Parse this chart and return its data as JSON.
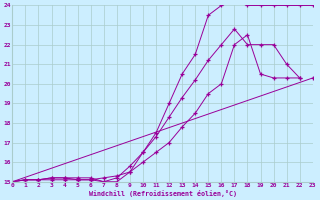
{
  "xlabel": "Windchill (Refroidissement éolien,°C)",
  "bg_color": "#cceeff",
  "grid_color": "#aacccc",
  "line_color": "#990099",
  "xmin": 0,
  "xmax": 23,
  "ymin": 15,
  "ymax": 24,
  "yticks": [
    15,
    16,
    17,
    18,
    19,
    20,
    21,
    22,
    23,
    24
  ],
  "xticks": [
    0,
    1,
    2,
    3,
    4,
    5,
    6,
    7,
    8,
    9,
    10,
    11,
    12,
    13,
    14,
    15,
    16,
    17,
    18,
    19,
    20,
    21,
    22,
    23
  ],
  "series": [
    {
      "x": [
        0,
        1,
        2,
        3,
        4,
        5,
        6,
        7,
        8,
        9,
        10,
        11,
        12,
        13,
        14,
        15,
        16,
        17,
        18,
        19,
        20,
        21,
        22,
        23
      ],
      "y": [
        15,
        15.1,
        15.1,
        15.1,
        15.1,
        15.1,
        15.1,
        15.2,
        15.3,
        15.5,
        16.5,
        17.5,
        19.0,
        20.5,
        21.5,
        23.5,
        24.0,
        24.2,
        24.0,
        24.0,
        24.0,
        24.0,
        24.0,
        24.0
      ]
    },
    {
      "x": [
        0,
        1,
        2,
        3,
        4,
        5,
        6,
        7,
        8,
        9,
        10,
        11,
        12,
        13,
        14,
        15,
        16,
        17,
        18,
        19,
        20,
        21,
        22
      ],
      "y": [
        15,
        15.1,
        15.1,
        15.2,
        15.2,
        15.1,
        15.1,
        15.0,
        15.2,
        15.8,
        16.5,
        17.3,
        18.3,
        19.3,
        20.2,
        21.2,
        22.0,
        22.8,
        22.0,
        22.0,
        22.0,
        21.0,
        20.3
      ]
    },
    {
      "x": [
        0,
        1,
        2,
        3,
        4,
        5,
        6,
        7,
        8,
        9,
        10,
        11,
        12,
        13,
        14,
        15,
        16,
        17,
        18,
        19,
        20,
        21,
        22
      ],
      "y": [
        15,
        15.1,
        15.1,
        15.2,
        15.2,
        15.2,
        15.2,
        15.0,
        15.0,
        15.5,
        16.0,
        16.5,
        17.0,
        17.8,
        18.5,
        19.5,
        20.0,
        22.0,
        22.5,
        20.5,
        20.3,
        20.3,
        20.3
      ]
    },
    {
      "x": [
        0,
        23
      ],
      "y": [
        15,
        20.3
      ]
    }
  ]
}
